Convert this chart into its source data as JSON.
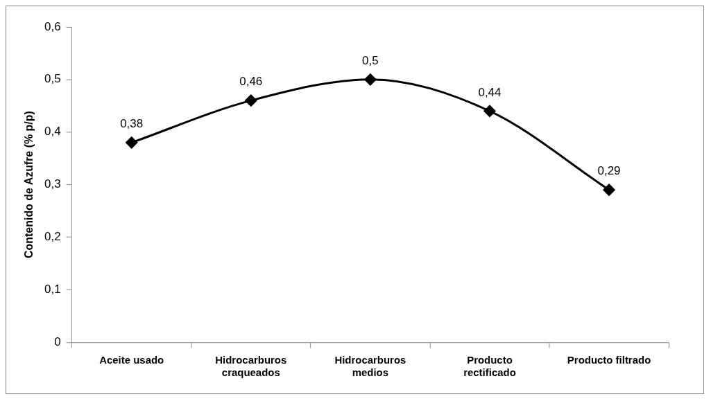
{
  "chart_data": {
    "type": "line",
    "ylabel": "Contenido de Azufre (% p/p)",
    "categories": [
      "Aceite usado",
      "Hidrocarburos craqueados",
      "Hidrocarburos medios",
      "Producto rectificado",
      "Producto filtrado"
    ],
    "series": [
      {
        "color": "#000000",
        "values": [
          0.38,
          0.46,
          0.5,
          0.44,
          0.29
        ],
        "value_labels": [
          "0,38",
          "0,46",
          "0,5",
          "0,44",
          "0,29"
        ]
      }
    ],
    "ylim": [
      0,
      0.6
    ],
    "yticks": [
      0,
      {
        "value": 0.1,
        "label": "0,1"
      },
      {
        "value": 0.2,
        "label": "0,2"
      },
      {
        "value": 0.3,
        "label": "0,3"
      },
      {
        "value": 0.4,
        "label": "0,4"
      },
      {
        "value": 0.5,
        "label": "0,5"
      },
      {
        "value": 0.6,
        "label": "0,6"
      }
    ],
    "grid": false,
    "legend": false,
    "marker": "diamond",
    "line_style": "solid"
  }
}
